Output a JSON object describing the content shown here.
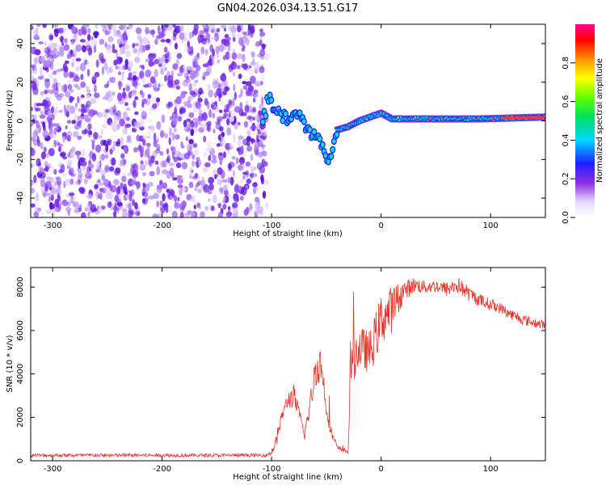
{
  "title": "GN04.2026.034.13.51.G17",
  "colors": {
    "noise": "#7b2cf0",
    "snr_line": "#e8322a",
    "axis": "#000000"
  },
  "chart_data": [
    {
      "type": "heatmap",
      "xlabel": "Height of straight line (km)",
      "ylabel": "Frequency (Hz)",
      "xlim": [
        -320,
        150
      ],
      "ylim": [
        -50,
        50
      ],
      "xticks": [
        -300,
        -200,
        -100,
        0,
        100
      ],
      "yticks": [
        -40,
        -20,
        0,
        20,
        40
      ],
      "colorbar": {
        "label": "Normalized spectral amplitude",
        "range": [
          0,
          1
        ],
        "ticks": [
          "0.0",
          "0.2",
          "0.4",
          "0.6",
          "0.8"
        ],
        "colormap": "rainbow (white-purple-blue-cyan-green-yellow-red-magenta)"
      },
      "signal_trace": [
        {
          "x": -105,
          "y": 14
        },
        {
          "x": -95,
          "y": 5
        },
        {
          "x": -85,
          "y": 0
        },
        {
          "x": -75,
          "y": 4
        },
        {
          "x": -70,
          "y": -2
        },
        {
          "x": -60,
          "y": -8
        },
        {
          "x": -52,
          "y": -16
        },
        {
          "x": -47,
          "y": -21
        },
        {
          "x": -42,
          "y": -5
        },
        {
          "x": -30,
          "y": -3
        },
        {
          "x": -20,
          "y": 0
        },
        {
          "x": -10,
          "y": 2
        },
        {
          "x": 0,
          "y": 4
        },
        {
          "x": 10,
          "y": 1
        },
        {
          "x": 50,
          "y": 1
        },
        {
          "x": 90,
          "y": 1
        },
        {
          "x": 150,
          "y": 2
        }
      ]
    },
    {
      "type": "line",
      "xlabel": "Height of straight line (km)",
      "ylabel": "SNR (10 * v/v)",
      "xlim": [
        -320,
        150
      ],
      "ylim": [
        0,
        8900
      ],
      "xticks": [
        -300,
        -200,
        -100,
        0,
        100
      ],
      "yticks": [
        0,
        2000,
        4000,
        6000,
        8000
      ],
      "series": [
        {
          "envelope": [
            [
              -320,
              250,
              80
            ],
            [
              -200,
              250,
              80
            ],
            [
              -105,
              250,
              80
            ],
            [
              -100,
              400,
              150
            ],
            [
              -95,
              1000,
              250
            ],
            [
              -90,
              2200,
              300
            ],
            [
              -85,
              2800,
              400
            ],
            [
              -80,
              3000,
              600
            ],
            [
              -75,
              2200,
              300
            ],
            [
              -70,
              1200,
              300
            ],
            [
              -65,
              2500,
              500
            ],
            [
              -60,
              4200,
              800
            ],
            [
              -55,
              4500,
              900
            ],
            [
              -50,
              2500,
              500
            ],
            [
              -45,
              1200,
              300
            ],
            [
              -40,
              600,
              100
            ],
            [
              -30,
              400,
              100
            ],
            [
              -28,
              4500,
              1100
            ],
            [
              -20,
              5200,
              1000
            ],
            [
              -10,
              5000,
              1000
            ],
            [
              0,
              6500,
              1200
            ],
            [
              10,
              7000,
              1100
            ],
            [
              20,
              7800,
              500
            ],
            [
              30,
              8100,
              350
            ],
            [
              40,
              8000,
              300
            ],
            [
              50,
              8050,
              300
            ],
            [
              60,
              7900,
              350
            ],
            [
              70,
              8100,
              400
            ],
            [
              80,
              7700,
              350
            ],
            [
              90,
              7400,
              300
            ],
            [
              100,
              7200,
              300
            ],
            [
              110,
              7000,
              250
            ],
            [
              120,
              6700,
              250
            ],
            [
              130,
              6500,
              250
            ],
            [
              140,
              6350,
              220
            ],
            [
              150,
              6250,
              220
            ]
          ]
        }
      ]
    }
  ]
}
